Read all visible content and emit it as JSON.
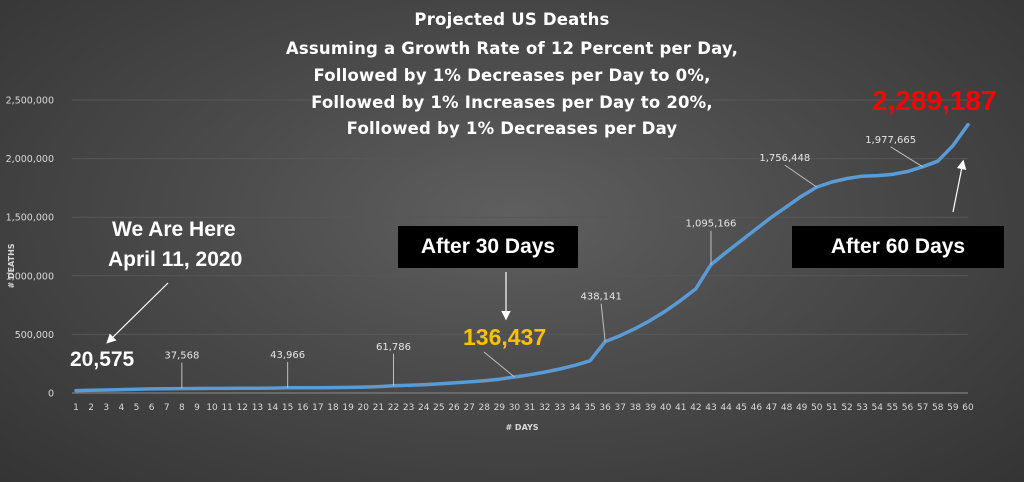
{
  "title_lines": [
    "Projected US Deaths",
    "Assuming a Growth Rate of 12 Percent per Day,",
    "Followed by 1% Decreases per Day to 0%,",
    "Followed by 1% Increases per Day to 20%,",
    "Followed by 1% Decreases per Day"
  ],
  "annotations": {
    "here_line1": "We Are Here",
    "here_line2": "April 11, 2020",
    "after30": "After 30 Days",
    "after60": "After 60 Days",
    "start_value": "20,575",
    "day30_value": "136,437",
    "day60_value": "2,289,187"
  },
  "colors": {
    "line": "#5b9bd5",
    "day30_value": "#ffc000",
    "day60_value": "#ff0000",
    "text": "#ffffff",
    "axis_text": "#d9d9d9"
  },
  "chart_data": {
    "type": "line",
    "title": "Projected US Deaths Assuming a Growth Rate of 12 Percent per Day, Followed by 1% Decreases per Day to 0%, Followed by 1% Increases per Day to 20%, Followed by 1% Decreases per Day",
    "xlabel": "# DAYS",
    "ylabel": "# DEATHS",
    "x": [
      1,
      2,
      3,
      4,
      5,
      6,
      7,
      8,
      9,
      10,
      11,
      12,
      13,
      14,
      15,
      16,
      17,
      18,
      19,
      20,
      21,
      22,
      23,
      24,
      25,
      26,
      27,
      28,
      29,
      30,
      31,
      32,
      33,
      34,
      35,
      36,
      37,
      38,
      39,
      40,
      41,
      42,
      43,
      44,
      45,
      46,
      47,
      48,
      49,
      50,
      51,
      52,
      53,
      54,
      55,
      56,
      57,
      58,
      59,
      60
    ],
    "ylim": [
      0,
      2500000
    ],
    "yticks": [
      "0",
      "500,000",
      "1,000,000",
      "1,500,000",
      "2,000,000",
      "2,500,000"
    ],
    "ytick_values": [
      0,
      500000,
      1000000,
      1500000,
      2000000,
      2500000
    ],
    "grid": true,
    "series": [
      {
        "values": [
          20575,
          23044,
          25810,
          28907,
          32375,
          35000,
          36500,
          37568,
          38200,
          38900,
          39600,
          40300,
          41000,
          41800,
          43966,
          44500,
          45200,
          46500,
          48000,
          50000,
          55000,
          61786,
          66000,
          71000,
          78000,
          86000,
          95000,
          105000,
          118000,
          136437,
          155000,
          178000,
          205000,
          236000,
          275000,
          438141,
          490000,
          550000,
          620000,
          700000,
          790000,
          890000,
          1095166,
          1200000,
          1300000,
          1400000,
          1500000,
          1590000,
          1680000,
          1756448,
          1800000,
          1830000,
          1850000,
          1855000,
          1865000,
          1890000,
          1930000,
          1977665,
          2110000,
          2289187
        ]
      }
    ],
    "data_labels": [
      {
        "x": 1,
        "label": "20,575"
      },
      {
        "x": 8,
        "label": "37,568"
      },
      {
        "x": 15,
        "label": "43,966"
      },
      {
        "x": 22,
        "label": "61,786"
      },
      {
        "x": 30,
        "label": "136,437"
      },
      {
        "x": 36,
        "label": "438,141"
      },
      {
        "x": 43,
        "label": "1,095,166"
      },
      {
        "x": 50,
        "label": "1,756,448"
      },
      {
        "x": 57,
        "label": "1,977,665"
      },
      {
        "x": 60,
        "label": "2,289,187"
      }
    ]
  }
}
